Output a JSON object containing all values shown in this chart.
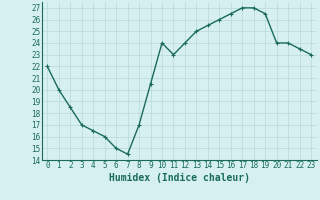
{
  "x": [
    0,
    1,
    2,
    3,
    4,
    5,
    6,
    7,
    8,
    9,
    10,
    11,
    12,
    13,
    14,
    15,
    16,
    17,
    18,
    19,
    20,
    21,
    22,
    23
  ],
  "y": [
    22,
    20,
    18.5,
    17,
    16.5,
    16,
    15,
    14.5,
    17,
    20.5,
    24,
    23,
    24,
    25,
    25.5,
    26,
    26.5,
    27,
    27,
    26.5,
    24,
    24,
    23.5,
    23
  ],
  "line_color": "#1a6b5a",
  "marker": "+",
  "marker_size": 3,
  "bg_color": "#d6f0ef",
  "grid_color": "#b8d8d8",
  "xlabel": "Humidex (Indice chaleur)",
  "ylim": [
    14,
    27.5
  ],
  "xlim": [
    -0.5,
    23.5
  ],
  "yticks": [
    14,
    15,
    16,
    17,
    18,
    19,
    20,
    21,
    22,
    23,
    24,
    25,
    26,
    27
  ],
  "xticks": [
    0,
    1,
    2,
    3,
    4,
    5,
    6,
    7,
    8,
    9,
    10,
    11,
    12,
    13,
    14,
    15,
    16,
    17,
    18,
    19,
    20,
    21,
    22,
    23
  ],
  "tick_label_fontsize": 5.5,
  "xlabel_fontsize": 7,
  "line_width": 1.0
}
